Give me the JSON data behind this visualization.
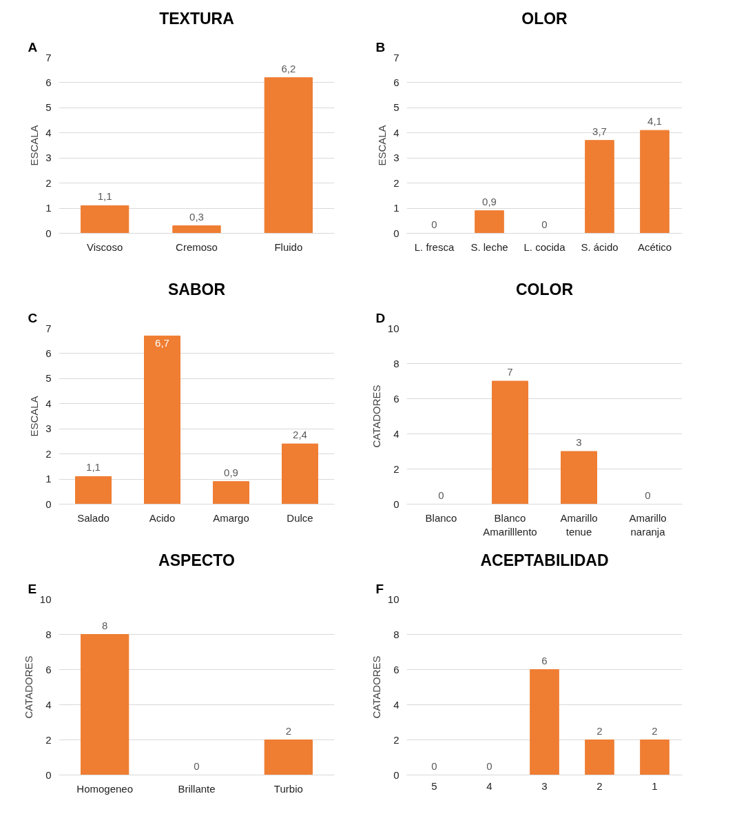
{
  "chart_data": [
    {
      "type": "bar",
      "title": "TEXTURA",
      "annotations": [
        "A"
      ],
      "ylabel": "ESCALA",
      "categories": [
        "Viscoso",
        "Cremoso",
        "Fluido"
      ],
      "values": [
        1.1,
        0.3,
        6.2
      ],
      "value_labels": [
        "1,1",
        "0,3",
        "6,2"
      ],
      "color": "#ef7d32",
      "ylim": [
        0,
        7
      ],
      "yticks": [
        0,
        1,
        2,
        3,
        4,
        5,
        6,
        7
      ],
      "grid": "y",
      "legend": false
    },
    {
      "type": "bar",
      "title": "OLOR",
      "annotations": [
        "B"
      ],
      "ylabel": "ESCALA",
      "categories": [
        "L. fresca",
        "S. leche",
        "L. cocida",
        "S. ácido",
        "Acético"
      ],
      "values": [
        0,
        0.9,
        0,
        3.7,
        4.1
      ],
      "value_labels": [
        "0",
        "0,9",
        "0",
        "3,7",
        "4,1"
      ],
      "color": "#ef7d32",
      "ylim": [
        0,
        7
      ],
      "yticks": [
        0,
        1,
        2,
        3,
        4,
        5,
        6,
        7
      ],
      "grid": "y",
      "legend": false
    },
    {
      "type": "bar",
      "title": "SABOR",
      "annotations": [
        "C"
      ],
      "ylabel": "ESCALA",
      "categories": [
        "Salado",
        "Acido",
        "Amargo",
        "Dulce"
      ],
      "values": [
        1.1,
        6.7,
        0.9,
        2.4
      ],
      "value_labels": [
        "1,1",
        "6,7",
        "0,9",
        "2,4"
      ],
      "color": "#ef7d32",
      "ylim": [
        0,
        7
      ],
      "yticks": [
        0,
        1,
        2,
        3,
        4,
        5,
        6,
        7
      ],
      "grid": "y",
      "legend": false
    },
    {
      "type": "bar",
      "title": "COLOR",
      "annotations": [
        "D"
      ],
      "ylabel": "CATADORES",
      "categories": [
        "Blanco",
        "Blanco Amarilllento",
        "Amarillo tenue",
        "Amarillo naranja"
      ],
      "values": [
        0,
        7,
        3,
        0
      ],
      "data_labels": true,
      "color": "#ef7d32",
      "ylim": [
        0,
        10
      ],
      "yticks": [
        0,
        2,
        4,
        6,
        8,
        10
      ],
      "grid": "y",
      "legend": false
    },
    {
      "type": "bar",
      "title": "ASPECTO",
      "annotations": [
        "E"
      ],
      "ylabel": "CATADORES",
      "categories": [
        "Homogeneo",
        "Brillante",
        "Turbio"
      ],
      "values": [
        8,
        0,
        2
      ],
      "data_labels": true,
      "color": "#ef7d32",
      "ylim": [
        0,
        10
      ],
      "yticks": [
        0,
        2,
        4,
        6,
        8,
        10
      ],
      "grid": "y",
      "legend": false
    },
    {
      "type": "bar",
      "title": "ACEPTABILIDAD",
      "annotations": [
        "F"
      ],
      "ylabel": "CATADORES",
      "categories": [
        "5",
        "4",
        "3",
        "2",
        "1"
      ],
      "values": [
        0,
        0,
        6,
        2,
        2
      ],
      "data_labels": true,
      "color": "#ef7d32",
      "ylim": [
        0,
        10
      ],
      "yticks": [
        0,
        2,
        4,
        6,
        8,
        10
      ],
      "grid": "y",
      "legend": false
    }
  ]
}
